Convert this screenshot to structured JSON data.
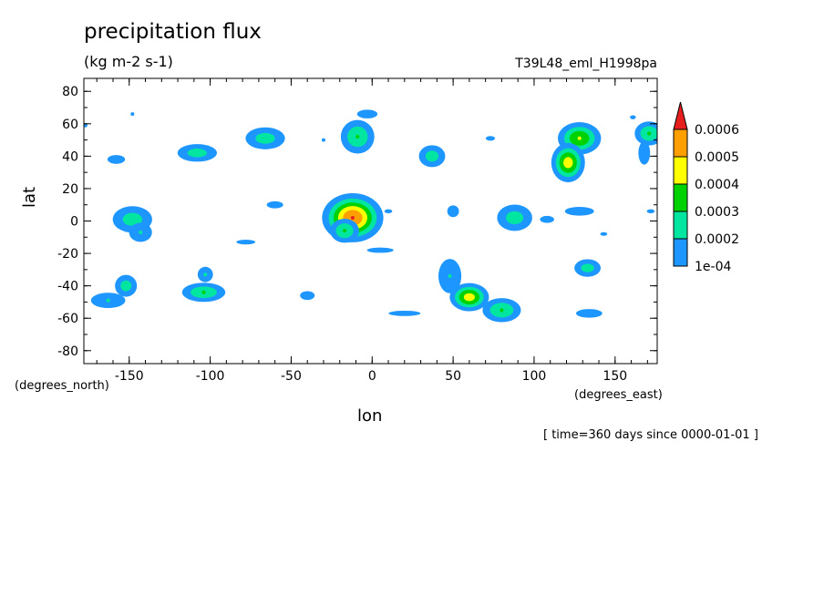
{
  "chart_data": {
    "type": "heatmap",
    "title": "precipitation flux",
    "units": "(kg m-2 s-1)",
    "run_name": "T39L48_eml_H1998pa",
    "xlabel": "lon",
    "ylabel": "lat",
    "x_units": "(degrees_east)",
    "y_units": "(degrees_north)",
    "time_info": "[ time=360 days since 0000-01-01 ]",
    "xlim": [
      -178,
      176
    ],
    "ylim": [
      -88,
      88
    ],
    "x_ticks": [
      -150,
      -100,
      -50,
      0,
      50,
      100,
      150
    ],
    "y_ticks": [
      -80,
      -60,
      -40,
      -20,
      0,
      20,
      40,
      60,
      80
    ],
    "x_tick_labels": [
      "-150",
      "-100",
      "-50",
      "0",
      "50",
      "100",
      "150"
    ],
    "y_tick_labels": [
      "-80",
      "-60",
      "-40",
      "-20",
      "0",
      "20",
      "40",
      "60",
      "80"
    ],
    "colorbar": {
      "levels": [
        0.0001,
        0.0002,
        0.0003,
        0.0004,
        0.0005,
        0.0006
      ],
      "labels": [
        "1e-04",
        "0.0002",
        "0.0003",
        "0.0004",
        "0.0005",
        "0.0006"
      ],
      "colors": [
        "#1e96ff",
        "#00e6a0",
        "#00d200",
        "#ffff00",
        "#ffa000",
        "#e61e1e"
      ]
    },
    "features": [
      {
        "lon": -12,
        "lat": 2,
        "peak": 0.0006,
        "sx": 10,
        "sy": 8
      },
      {
        "lon": -17,
        "lat": -6,
        "peak": 0.0003,
        "sx": 6,
        "sy": 5
      },
      {
        "lon": -9,
        "lat": 52,
        "peak": 0.0003,
        "sx": 7,
        "sy": 7
      },
      {
        "lon": -3,
        "lat": 66,
        "peak": 0.00015,
        "sx": 7,
        "sy": 3
      },
      {
        "lon": 128,
        "lat": 51,
        "peak": 0.0004,
        "sx": 8,
        "sy": 6
      },
      {
        "lon": 121,
        "lat": 36,
        "peak": 0.00045,
        "sx": 6,
        "sy": 7
      },
      {
        "lon": 171,
        "lat": 54,
        "peak": 0.0003,
        "sx": 6,
        "sy": 5
      },
      {
        "lon": 168,
        "lat": 42,
        "peak": 0.00015,
        "sx": 4,
        "sy": 8
      },
      {
        "lon": 60,
        "lat": -47,
        "peak": 0.00045,
        "sx": 7,
        "sy": 5
      },
      {
        "lon": 48,
        "lat": -34,
        "peak": 0.0002,
        "sx": 6,
        "sy": 9
      },
      {
        "lon": 80,
        "lat": -55,
        "peak": 0.0003,
        "sx": 8,
        "sy": 5
      },
      {
        "lon": -104,
        "lat": -44,
        "peak": 0.0003,
        "sx": 9,
        "sy": 4
      },
      {
        "lon": -103,
        "lat": -33,
        "peak": 0.0002,
        "sx": 4,
        "sy": 4
      },
      {
        "lon": -163,
        "lat": -49,
        "peak": 0.0002,
        "sx": 9,
        "sy": 4
      },
      {
        "lon": -152,
        "lat": -40,
        "peak": 0.00025,
        "sx": 5,
        "sy": 5
      },
      {
        "lon": -148,
        "lat": 1,
        "peak": 0.00025,
        "sx": 9,
        "sy": 6
      },
      {
        "lon": -143,
        "lat": -7,
        "peak": 0.0002,
        "sx": 6,
        "sy": 5
      },
      {
        "lon": -66,
        "lat": 51,
        "peak": 0.00025,
        "sx": 9,
        "sy": 5
      },
      {
        "lon": -108,
        "lat": 42,
        "peak": 0.00025,
        "sx": 9,
        "sy": 4
      },
      {
        "lon": 37,
        "lat": 40,
        "peak": 0.00025,
        "sx": 6,
        "sy": 5
      },
      {
        "lon": 88,
        "lat": 2,
        "peak": 0.00025,
        "sx": 8,
        "sy": 6
      },
      {
        "lon": 133,
        "lat": -29,
        "peak": 0.00025,
        "sx": 6,
        "sy": 4
      },
      {
        "lon": 128,
        "lat": 6,
        "peak": 0.00015,
        "sx": 10,
        "sy": 3
      },
      {
        "lon": 134,
        "lat": -57,
        "peak": 0.00015,
        "sx": 9,
        "sy": 3
      },
      {
        "lon": -158,
        "lat": 38,
        "peak": 0.00015,
        "sx": 6,
        "sy": 3
      },
      {
        "lon": -40,
        "lat": -46,
        "peak": 0.00015,
        "sx": 5,
        "sy": 3
      },
      {
        "lon": 20,
        "lat": -57,
        "peak": 0.00014,
        "sx": 12,
        "sy": 2
      },
      {
        "lon": 5,
        "lat": -18,
        "peak": 0.00014,
        "sx": 10,
        "sy": 2
      },
      {
        "lon": -78,
        "lat": -13,
        "peak": 0.00013,
        "sx": 8,
        "sy": 2
      },
      {
        "lon": -60,
        "lat": 10,
        "peak": 0.00013,
        "sx": 7,
        "sy": 3
      },
      {
        "lon": 50,
        "lat": 6,
        "peak": 0.00015,
        "sx": 4,
        "sy": 4
      },
      {
        "lon": 73,
        "lat": 51,
        "peak": 0.00013,
        "sx": 4,
        "sy": 2
      },
      {
        "lon": 161,
        "lat": 64,
        "peak": 0.00012,
        "sx": 3,
        "sy": 2
      },
      {
        "lon": -177,
        "lat": 59,
        "peak": 0.00012,
        "sx": 2,
        "sy": 2
      },
      {
        "lon": 108,
        "lat": 1,
        "peak": 0.00013,
        "sx": 6,
        "sy": 3
      },
      {
        "lon": 143,
        "lat": -8,
        "peak": 0.00011,
        "sx": 5,
        "sy": 2
      },
      {
        "lon": 172,
        "lat": 6,
        "peak": 0.00012,
        "sx": 4,
        "sy": 2
      },
      {
        "lon": 10,
        "lat": 6,
        "peak": 0.00012,
        "sx": 4,
        "sy": 2
      },
      {
        "lon": -30,
        "lat": 50,
        "peak": 0.00011,
        "sx": 2,
        "sy": 2
      },
      {
        "lon": -148,
        "lat": 66,
        "peak": 0.00011,
        "sx": 2,
        "sy": 1
      }
    ]
  }
}
